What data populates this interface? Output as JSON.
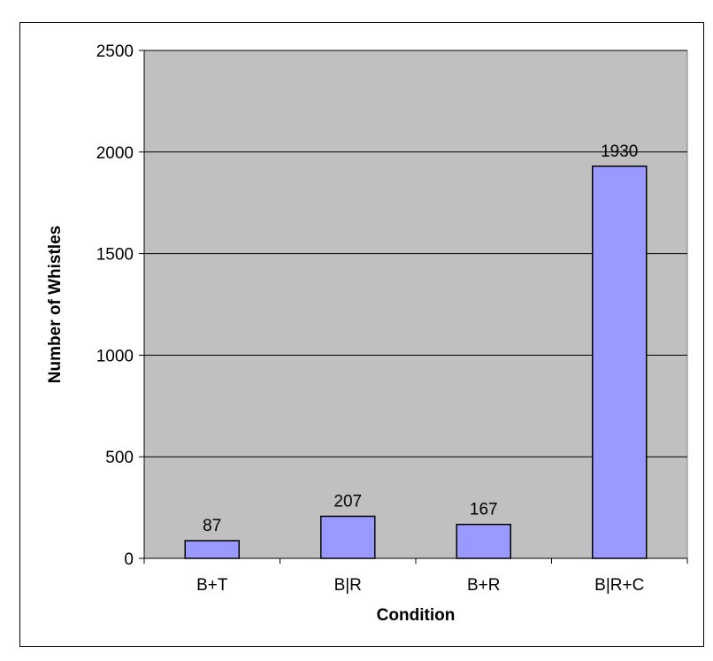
{
  "chart_data": {
    "type": "bar",
    "categories": [
      "B+T",
      "B|R",
      "B+R",
      "B|R+C"
    ],
    "values": [
      87,
      207,
      167,
      1930
    ],
    "data_labels": [
      "87",
      "207",
      "167",
      "1930"
    ],
    "title": "",
    "xlabel": "Condition",
    "ylabel": "Number of Whistles",
    "ylim": [
      0,
      2500
    ],
    "yticks": [
      0,
      500,
      1000,
      1500,
      2000,
      2500
    ],
    "ytick_labels": [
      "0",
      "500",
      "1000",
      "1500",
      "2000",
      "2500"
    ],
    "grid": true,
    "legend": "none",
    "colors": {
      "bar_fill": "#9999ff",
      "bar_stroke": "#000000",
      "plot_background": "#c0c0c0",
      "gridline": "#000000"
    }
  }
}
